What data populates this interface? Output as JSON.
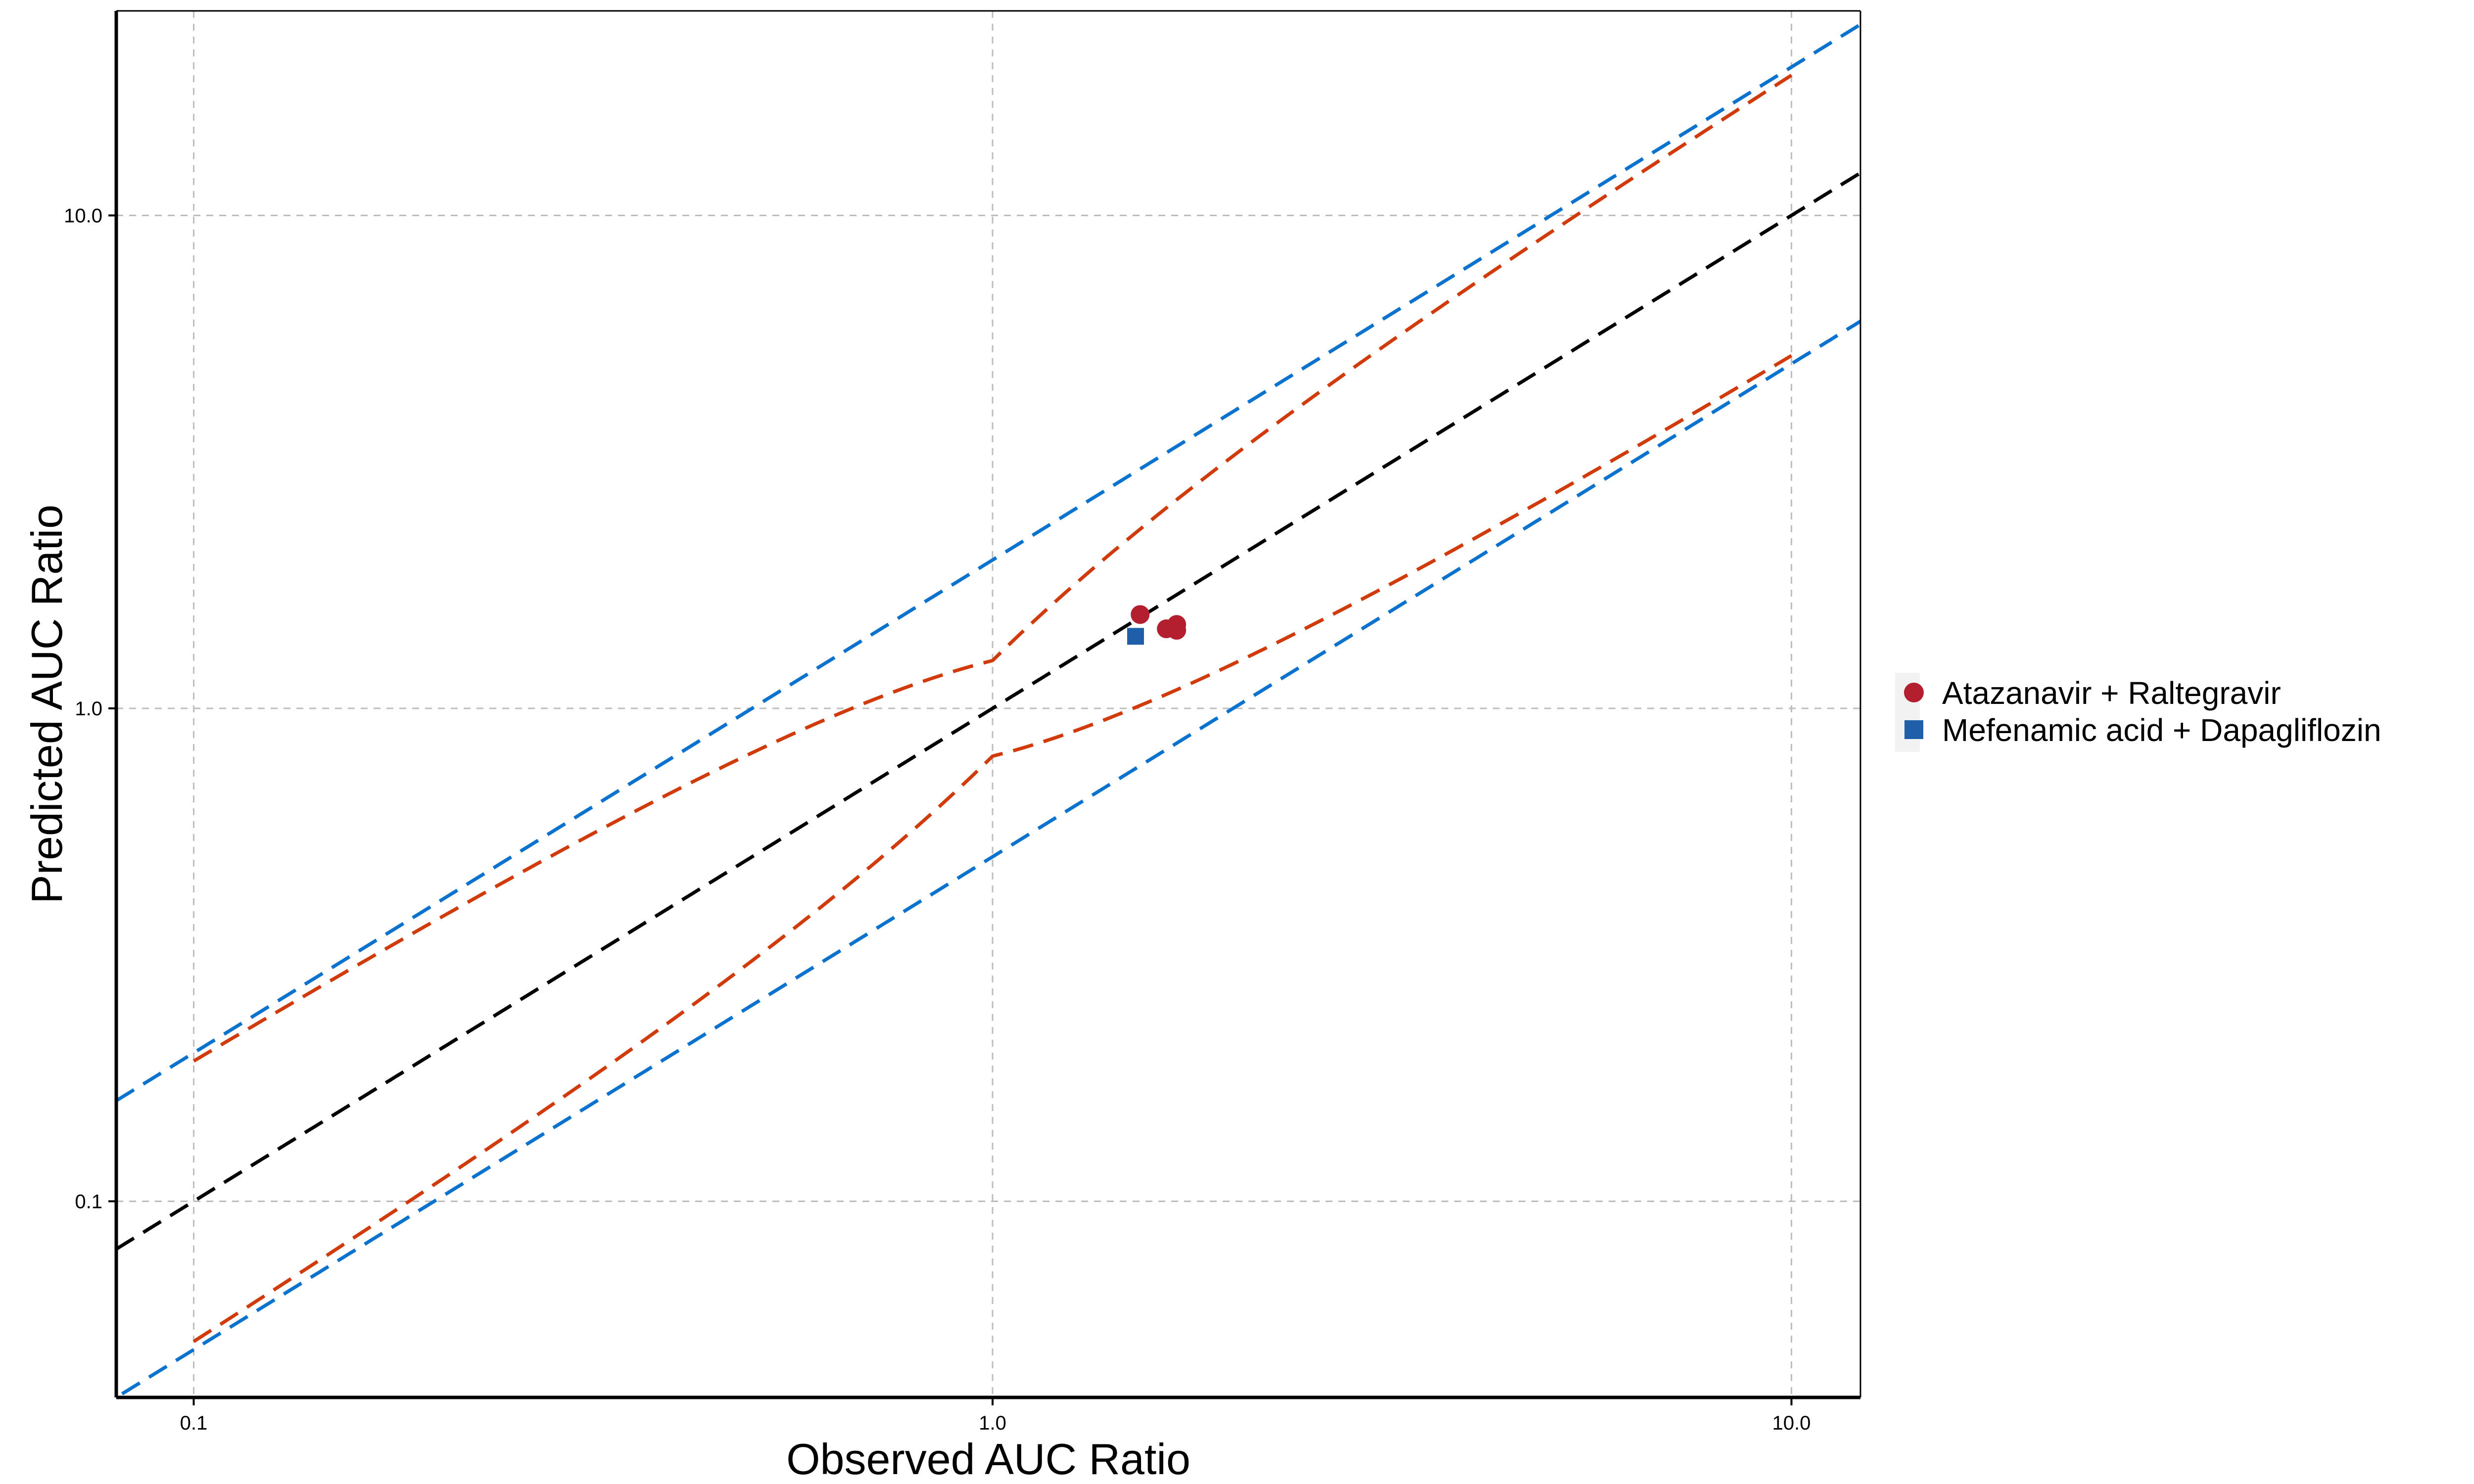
{
  "chart_data": {
    "type": "scatter",
    "title": "",
    "xlabel": "Observed AUC Ratio",
    "ylabel": "Predicted AUC Ratio",
    "xscale": "log",
    "yscale": "log",
    "xlim": [
      0.08,
      12.2
    ],
    "ylim": [
      0.04,
      26
    ],
    "x_ticks": [
      0.1,
      1.0,
      10.0
    ],
    "x_tick_labels": [
      "0.1",
      "1.0",
      "10.0"
    ],
    "y_ticks": [
      0.1,
      1.0,
      10.0
    ],
    "y_tick_labels": [
      "0.1",
      "1.0",
      "10.0"
    ],
    "grid": true,
    "legend_position": "right",
    "series": [
      {
        "name": "Atazanavir + Raltegravir",
        "marker": "circle",
        "color": "#B41F30",
        "points": [
          {
            "x": 1.53,
            "y": 1.55
          },
          {
            "x": 1.65,
            "y": 1.45
          },
          {
            "x": 1.7,
            "y": 1.44
          },
          {
            "x": 1.7,
            "y": 1.48
          }
        ]
      },
      {
        "name": "Mefenamic acid + Dapagliflozin",
        "marker": "square",
        "color": "#1F5FAA",
        "points": [
          {
            "x": 1.51,
            "y": 1.4
          }
        ]
      }
    ],
    "reference_lines": [
      {
        "kind": "identity",
        "color": "#000000",
        "dashed": true
      },
      {
        "kind": "2-fold",
        "color": "#0B72CE",
        "dashed": true,
        "factors": [
          2,
          0.5
        ]
      },
      {
        "kind": "guest-limits",
        "color": "#D13B0B",
        "dashed": true,
        "delta": 1.25
      }
    ]
  }
}
